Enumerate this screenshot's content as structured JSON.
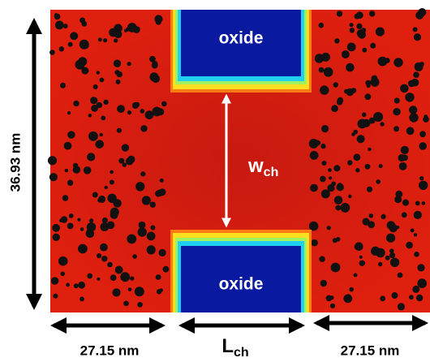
{
  "oxide_top": "oxide",
  "oxide_bottom": "oxide",
  "channel_width": {
    "symbol": "w",
    "subscript": "ch"
  },
  "channel_length": {
    "symbol": "L",
    "subscript": "ch"
  },
  "height_label": "36.93 nm",
  "left_length_label": "27.15 nm",
  "right_length_label": "27.15 nm"
}
